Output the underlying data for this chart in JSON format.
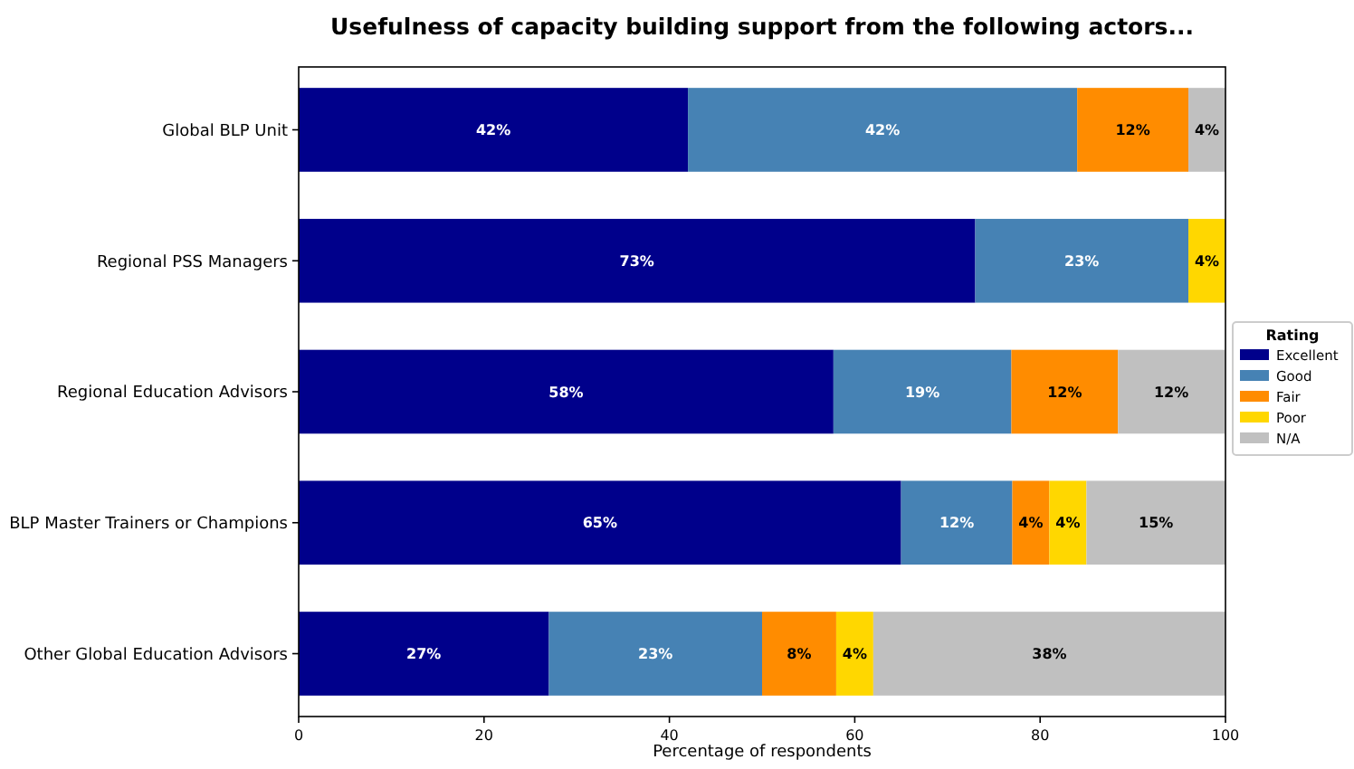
{
  "chart_data": {
    "type": "bar",
    "orientation": "horizontal",
    "stacked": true,
    "title": "Usefulness of capacity building support from the following actors...",
    "xlabel": "Percentage of respondents",
    "legend_title": "Rating",
    "legend": "right",
    "grid": false,
    "xlim": [
      0,
      100
    ],
    "xticks": [
      0,
      20,
      40,
      60,
      80,
      100
    ],
    "categories": [
      "Global BLP Unit",
      "Regional PSS Managers",
      "Regional Education Advisors",
      "BLP Master Trainers or Champions",
      "Other Global Education Advisors"
    ],
    "series": [
      {
        "name": "Excellent",
        "color": "#00008b",
        "values": [
          42,
          73,
          57.7,
          65,
          27
        ],
        "value_labels": [
          "42%",
          "73%",
          "58%",
          "65%",
          "27%"
        ]
      },
      {
        "name": "Good",
        "color": "#4682b4",
        "values": [
          42,
          23,
          19.2,
          12,
          23
        ],
        "value_labels": [
          "42%",
          "23%",
          "19%",
          "12%",
          "23%"
        ]
      },
      {
        "name": "Fair",
        "color": "#ff8c00",
        "values": [
          12,
          0,
          11.5,
          4,
          8
        ],
        "value_labels": [
          "12%",
          null,
          "12%",
          "4%",
          "8%"
        ]
      },
      {
        "name": "Poor",
        "color": "#ffd700",
        "values": [
          0,
          4,
          0,
          4,
          4
        ],
        "value_labels": [
          null,
          "4%",
          null,
          "4%",
          "4%"
        ]
      },
      {
        "name": "N/A",
        "color": "#c0c0c0",
        "values": [
          4,
          0,
          11.5,
          15,
          38
        ],
        "value_labels": [
          "4%",
          null,
          "12%",
          "15%",
          "38%"
        ]
      }
    ]
  }
}
